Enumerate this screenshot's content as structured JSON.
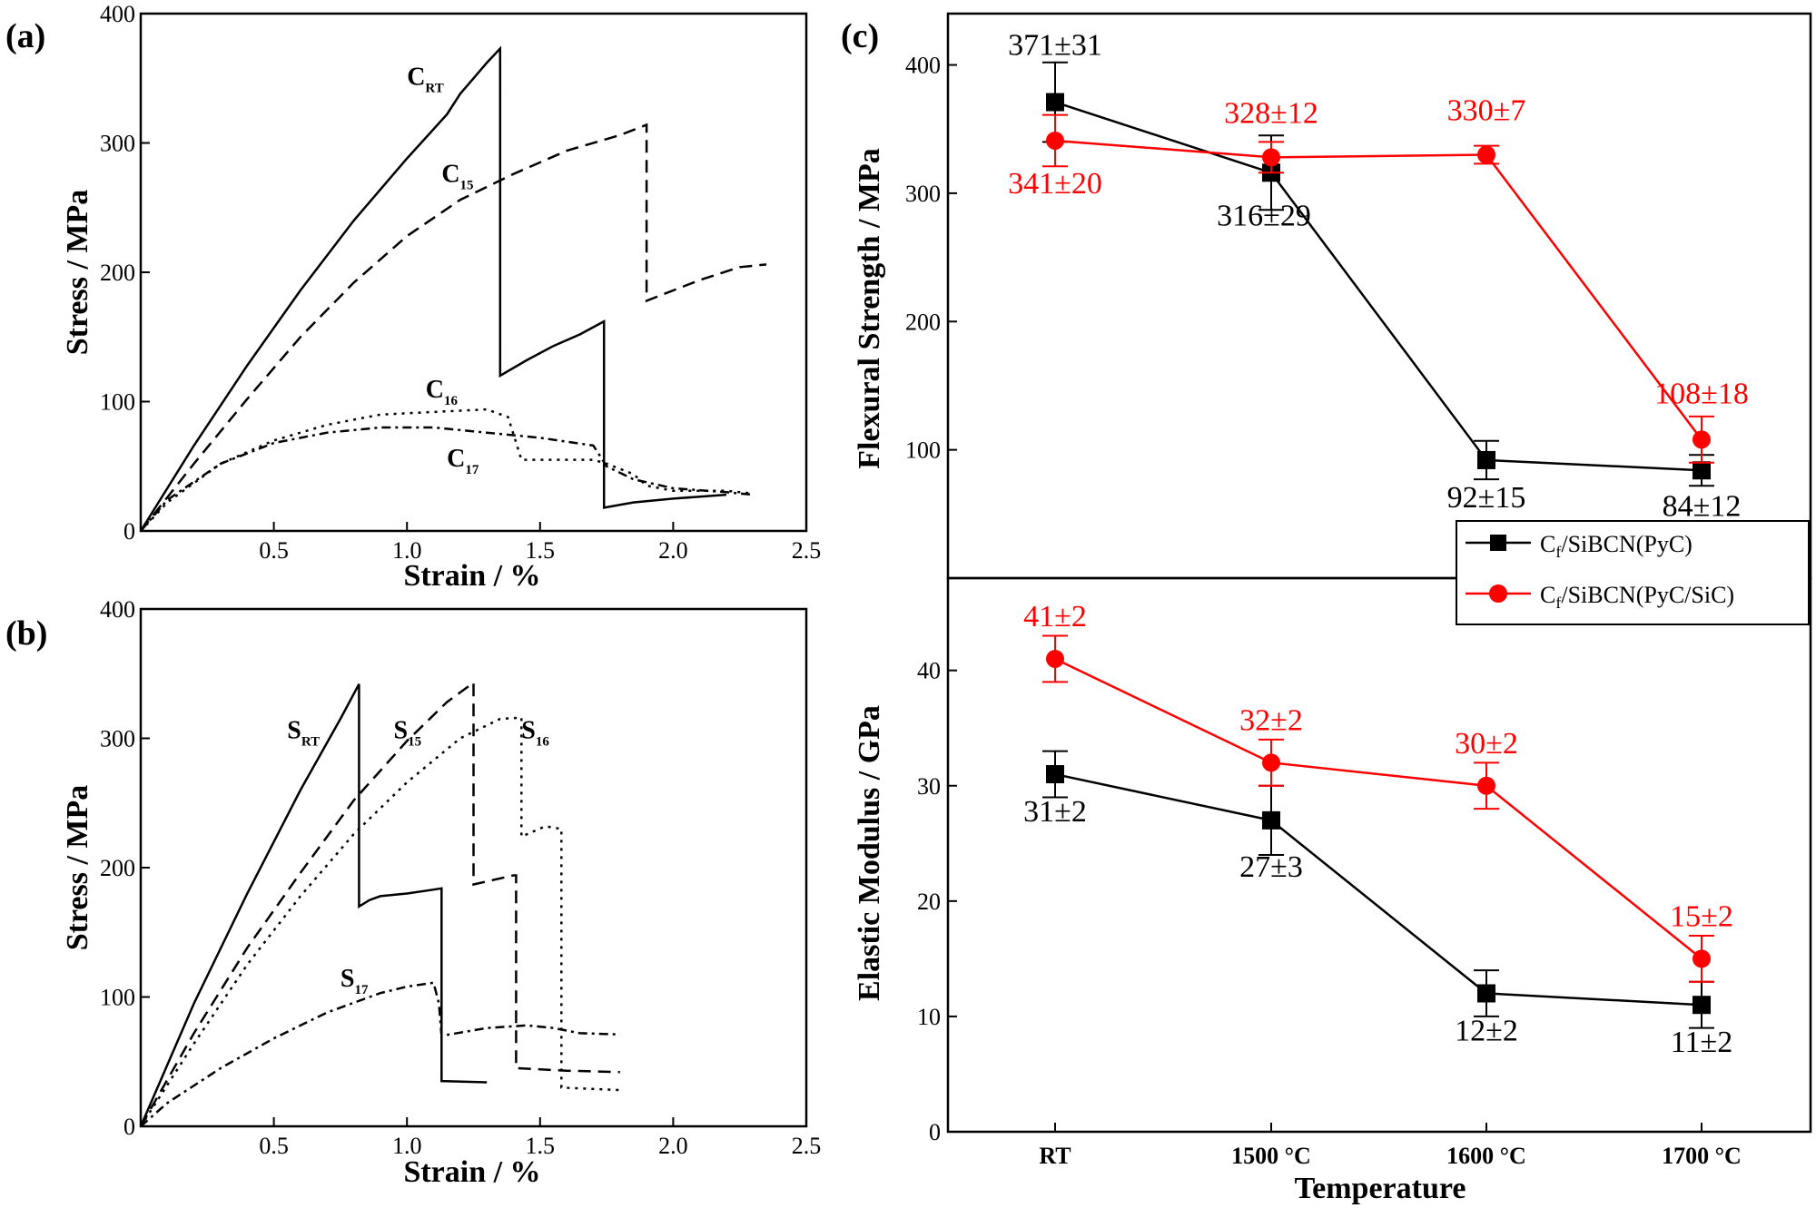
{
  "colors": {
    "black_series": "#000000",
    "red_series": "#ff0000"
  },
  "panels": {
    "a": {
      "label": "(a)",
      "xlabel": "Strain / %",
      "ylabel": "Stress / MPa",
      "xlim": [
        0,
        2.5
      ],
      "ylim": [
        0,
        400
      ],
      "xticks": [
        "0.5",
        "1.0",
        "1.5",
        "2.0",
        "2.5"
      ],
      "yticks": [
        "0",
        "100",
        "200",
        "300",
        "400"
      ],
      "curves": [
        {
          "main": "C",
          "sub": "RT",
          "style": "solid",
          "label_at": [
            1.0,
            345
          ],
          "points": [
            [
              0,
              0
            ],
            [
              0.2,
              66
            ],
            [
              0.4,
              128
            ],
            [
              0.6,
              186
            ],
            [
              0.8,
              240
            ],
            [
              1.0,
              288
            ],
            [
              1.15,
              322
            ],
            [
              1.2,
              338
            ],
            [
              1.25,
              350
            ],
            [
              1.3,
              362
            ],
            [
              1.35,
              373
            ],
            [
              1.35,
              120
            ],
            [
              1.45,
              132
            ],
            [
              1.55,
              143
            ],
            [
              1.65,
              152
            ],
            [
              1.74,
              162
            ],
            [
              1.74,
              18
            ],
            [
              1.85,
              22
            ],
            [
              2.0,
              25
            ],
            [
              2.2,
              28
            ]
          ]
        },
        {
          "main": "C",
          "sub": "15",
          "style": "dash",
          "label_at": [
            1.13,
            270
          ],
          "points": [
            [
              0,
              0
            ],
            [
              0.2,
              52
            ],
            [
              0.4,
              102
            ],
            [
              0.6,
              150
            ],
            [
              0.8,
              192
            ],
            [
              1.0,
              228
            ],
            [
              1.2,
              256
            ],
            [
              1.4,
              276
            ],
            [
              1.6,
              294
            ],
            [
              1.8,
              306
            ],
            [
              1.9,
              314
            ],
            [
              1.9,
              178
            ],
            [
              2.1,
              194
            ],
            [
              2.25,
              204
            ],
            [
              2.35,
              206
            ]
          ]
        },
        {
          "main": "C",
          "sub": "16",
          "style": "dot",
          "label_at": [
            1.07,
            103
          ],
          "points": [
            [
              0,
              0
            ],
            [
              0.1,
              22
            ],
            [
              0.3,
              52
            ],
            [
              0.5,
              70
            ],
            [
              0.7,
              82
            ],
            [
              0.9,
              90
            ],
            [
              1.1,
              92
            ],
            [
              1.3,
              94
            ],
            [
              1.38,
              88
            ],
            [
              1.43,
              55
            ],
            [
              1.7,
              55
            ],
            [
              1.75,
              52
            ],
            [
              1.85,
              44
            ],
            [
              1.9,
              35
            ],
            [
              2.0,
              31
            ],
            [
              2.2,
              31
            ],
            [
              2.3,
              29
            ]
          ]
        },
        {
          "main": "C",
          "sub": "17",
          "style": "dashdot",
          "label_at": [
            1.15,
            50
          ],
          "points": [
            [
              0,
              0
            ],
            [
              0.1,
              24
            ],
            [
              0.3,
              52
            ],
            [
              0.5,
              68
            ],
            [
              0.7,
              76
            ],
            [
              0.9,
              80
            ],
            [
              1.1,
              80
            ],
            [
              1.3,
              76
            ],
            [
              1.5,
              72
            ],
            [
              1.7,
              66
            ],
            [
              1.75,
              50
            ],
            [
              1.85,
              40
            ],
            [
              2.0,
              33
            ],
            [
              2.2,
              30
            ],
            [
              2.3,
              28
            ]
          ]
        }
      ]
    },
    "b": {
      "label": "(b)",
      "xlabel": "Strain / %",
      "ylabel": "Stress / MPa",
      "xlim": [
        0,
        2.5
      ],
      "ylim": [
        0,
        400
      ],
      "xticks": [
        "0.5",
        "1.0",
        "1.5",
        "2.0",
        "2.5"
      ],
      "yticks": [
        "0",
        "100",
        "200",
        "300",
        "400"
      ],
      "curves": [
        {
          "main": "S",
          "sub": "RT",
          "style": "solid",
          "label_at": [
            0.55,
            300
          ],
          "points": [
            [
              0,
              0
            ],
            [
              0.2,
              95
            ],
            [
              0.4,
              180
            ],
            [
              0.6,
              260
            ],
            [
              0.75,
              315
            ],
            [
              0.82,
              342
            ],
            [
              0.82,
              170
            ],
            [
              0.86,
              175
            ],
            [
              0.9,
              178
            ],
            [
              1.0,
              180
            ],
            [
              1.1,
              183
            ],
            [
              1.13,
              184
            ],
            [
              1.13,
              35
            ],
            [
              1.3,
              34
            ]
          ]
        },
        {
          "main": "S",
          "sub": "15",
          "style": "dash",
          "label_at": [
            0.95,
            300
          ],
          "points": [
            [
              0,
              0
            ],
            [
              0.2,
              72
            ],
            [
              0.4,
              138
            ],
            [
              0.6,
              196
            ],
            [
              0.8,
              252
            ],
            [
              1.0,
              298
            ],
            [
              1.15,
              328
            ],
            [
              1.25,
              343
            ],
            [
              1.25,
              187
            ],
            [
              1.4,
              194
            ],
            [
              1.41,
              194
            ],
            [
              1.41,
              45
            ],
            [
              1.6,
              43
            ],
            [
              1.8,
              42
            ]
          ]
        },
        {
          "main": "S",
          "sub": "16",
          "style": "dot",
          "label_at": [
            1.43,
            300
          ],
          "points": [
            [
              0,
              0
            ],
            [
              0.2,
              64
            ],
            [
              0.4,
              125
            ],
            [
              0.6,
              178
            ],
            [
              0.8,
              226
            ],
            [
              1.0,
              266
            ],
            [
              1.2,
              300
            ],
            [
              1.35,
              315
            ],
            [
              1.43,
              316
            ],
            [
              1.43,
              224
            ],
            [
              1.52,
              232
            ],
            [
              1.58,
              230
            ],
            [
              1.58,
              30
            ],
            [
              1.8,
              28
            ]
          ]
        },
        {
          "main": "S",
          "sub": "17",
          "style": "dashdot",
          "label_at": [
            0.75,
            108
          ],
          "points": [
            [
              0,
              0
            ],
            [
              0.1,
              18
            ],
            [
              0.3,
              45
            ],
            [
              0.5,
              68
            ],
            [
              0.7,
              88
            ],
            [
              0.9,
              103
            ],
            [
              1.0,
              108
            ],
            [
              1.1,
              111
            ],
            [
              1.12,
              95
            ],
            [
              1.13,
              70
            ],
            [
              1.3,
              76
            ],
            [
              1.45,
              78
            ],
            [
              1.55,
              76
            ],
            [
              1.65,
              72
            ],
            [
              1.8,
              71
            ]
          ]
        }
      ]
    },
    "c": {
      "label": "(c)",
      "xlabel": "Temperature",
      "categories": [
        "RT",
        "1500 °C",
        "1600 °C",
        "1700 °C"
      ],
      "top": {
        "ylabel": "Flexural Strength / MPa",
        "ylim": [
          0,
          440
        ],
        "yticks": [
          "100",
          "200",
          "300",
          "400"
        ],
        "series": [
          {
            "values": [
              371,
              316,
              92,
              84
            ],
            "errors": [
              31,
              29,
              15,
              12
            ],
            "labels": [
              "371±31",
              "316±29",
              "92±15",
              "84±12"
            ]
          },
          {
            "values": [
              341,
              328,
              330,
              108
            ],
            "errors": [
              20,
              12,
              7,
              18
            ],
            "labels": [
              "341±20",
              "328±12",
              "330±7",
              "108±18"
            ]
          }
        ]
      },
      "bottom": {
        "ylabel": "Elastic Modulus / GPa",
        "ylim": [
          0,
          48
        ],
        "yticks": [
          "0",
          "10",
          "20",
          "30",
          "40"
        ],
        "series": [
          {
            "values": [
              31,
              27,
              12,
              11
            ],
            "errors": [
              2,
              3,
              2,
              2
            ],
            "labels": [
              "31±2",
              "27±3",
              "12±2",
              "11±2"
            ]
          },
          {
            "values": [
              41,
              32,
              30,
              15
            ],
            "errors": [
              2,
              2,
              2,
              2
            ],
            "labels": [
              "41±2",
              "32±2",
              "30±2",
              "15±2"
            ]
          }
        ]
      },
      "legend": [
        {
          "pre": "C",
          "sub": "f",
          "post": "/SiBCN(PyC)"
        },
        {
          "pre": "C",
          "sub": "f",
          "post": "/SiBCN(PyC/SiC)"
        }
      ]
    }
  }
}
